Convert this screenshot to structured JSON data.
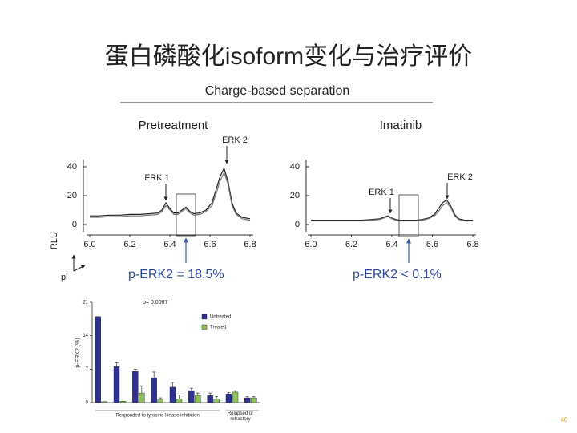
{
  "slide": {
    "title": "蛋白磷酸化isoform变化与治疗评价",
    "page_number": "40"
  },
  "figure": {
    "heading": "Charge-based separation",
    "y_axis_label": "RLU",
    "x_axis_label": "pl"
  },
  "chart_data": [
    {
      "type": "line",
      "title": "Pretreatment",
      "x": [
        6.0,
        6.05,
        6.1,
        6.15,
        6.2,
        6.25,
        6.3,
        6.34,
        6.36,
        6.38,
        6.4,
        6.42,
        6.44,
        6.46,
        6.48,
        6.5,
        6.52,
        6.55,
        6.58,
        6.61,
        6.63,
        6.65,
        6.67,
        6.69,
        6.71,
        6.73,
        6.76,
        6.8
      ],
      "series": [
        {
          "color": "#222222",
          "values": [
            6,
            6,
            6.5,
            6.5,
            7,
            7,
            7.5,
            8,
            10,
            15,
            11,
            8,
            8,
            10,
            12,
            9,
            7.5,
            8,
            10,
            15,
            24,
            33,
            39,
            30,
            15,
            8,
            5,
            4
          ]
        },
        {
          "color": "#777777",
          "values": [
            5,
            5,
            5.5,
            5.5,
            6,
            6,
            6.5,
            7,
            9,
            13,
            10,
            7,
            7,
            9,
            11,
            8,
            6.5,
            7,
            9,
            13,
            21,
            30,
            36,
            28,
            13,
            7,
            4,
            3
          ]
        }
      ],
      "xlim": [
        6.0,
        6.8
      ],
      "xticks": [
        {
          "value": 6.0,
          "label": "6.0"
        },
        6.2,
        6.4,
        6.6,
        6.8
      ],
      "ylim": [
        -5,
        45
      ],
      "yticks": [
        0,
        20,
        40
      ],
      "annotations": [
        "FRK 1",
        "ERK 2"
      ],
      "summary": "p-ERK2  = 18.5%"
    },
    {
      "type": "line",
      "title": "Imatinib",
      "x": [
        6.0,
        6.05,
        6.1,
        6.15,
        6.2,
        6.25,
        6.3,
        6.34,
        6.36,
        6.38,
        6.4,
        6.42,
        6.44,
        6.46,
        6.48,
        6.5,
        6.52,
        6.55,
        6.58,
        6.61,
        6.63,
        6.65,
        6.67,
        6.69,
        6.71,
        6.73,
        6.76,
        6.8
      ],
      "series": [
        {
          "color": "#222222",
          "values": [
            3,
            3,
            3,
            3,
            3,
            3,
            3.5,
            4,
            5,
            6,
            4.5,
            3.5,
            3,
            3,
            3,
            3,
            3,
            3.5,
            4.5,
            7,
            11,
            15,
            17,
            13,
            7,
            4,
            3,
            3
          ]
        },
        {
          "color": "#777777",
          "values": [
            2.5,
            2.5,
            2.5,
            2.5,
            2.5,
            2.5,
            3,
            3.5,
            4.5,
            5.5,
            4,
            3,
            2.5,
            2.5,
            2.5,
            2.5,
            2.5,
            3,
            4,
            6,
            9,
            13,
            15,
            12,
            6,
            3.5,
            2.5,
            2.5
          ]
        }
      ],
      "xlim": [
        6.0,
        6.8
      ],
      "xticks": [
        {
          "value": 6.0,
          "label": "6.0"
        },
        6.2,
        6.4,
        6.6,
        6.8
      ],
      "ylim": [
        -5,
        45
      ],
      "yticks": [
        0,
        20,
        40
      ],
      "annotations": [
        "ERK 1",
        "ERK 2"
      ],
      "summary": "p-ERK2  < 0.1%"
    },
    {
      "type": "bar",
      "annotation": "p= 0.0007",
      "y_label": "p-ERK2  (%)",
      "categories": [
        null,
        null,
        null,
        null,
        null,
        null,
        null,
        null,
        null
      ],
      "group_labels": [
        "Responded to tyrosine kinase inhibition",
        "Relapsed or refractory"
      ],
      "series": [
        {
          "name": "Untreated",
          "color": "#2e3192",
          "values": [
            18,
            7.5,
            6.5,
            5.2,
            3.2,
            2.5,
            1.5,
            1.8,
            1
          ],
          "errors": [
            0,
            0.8,
            0.5,
            1.2,
            1,
            0.5,
            0.5,
            0.3,
            0.3
          ]
        },
        {
          "name": "Treated",
          "color": "#8cc060",
          "values": [
            0.2,
            0.3,
            2,
            0.7,
            0.8,
            1.5,
            0.8,
            2.2,
            1
          ],
          "errors": [
            0,
            0,
            1.5,
            0.3,
            0.8,
            0.5,
            0.5,
            0.3,
            0.3
          ]
        }
      ],
      "ylim": [
        0,
        21
      ],
      "yticks": [
        0,
        7,
        14,
        21
      ]
    }
  ]
}
